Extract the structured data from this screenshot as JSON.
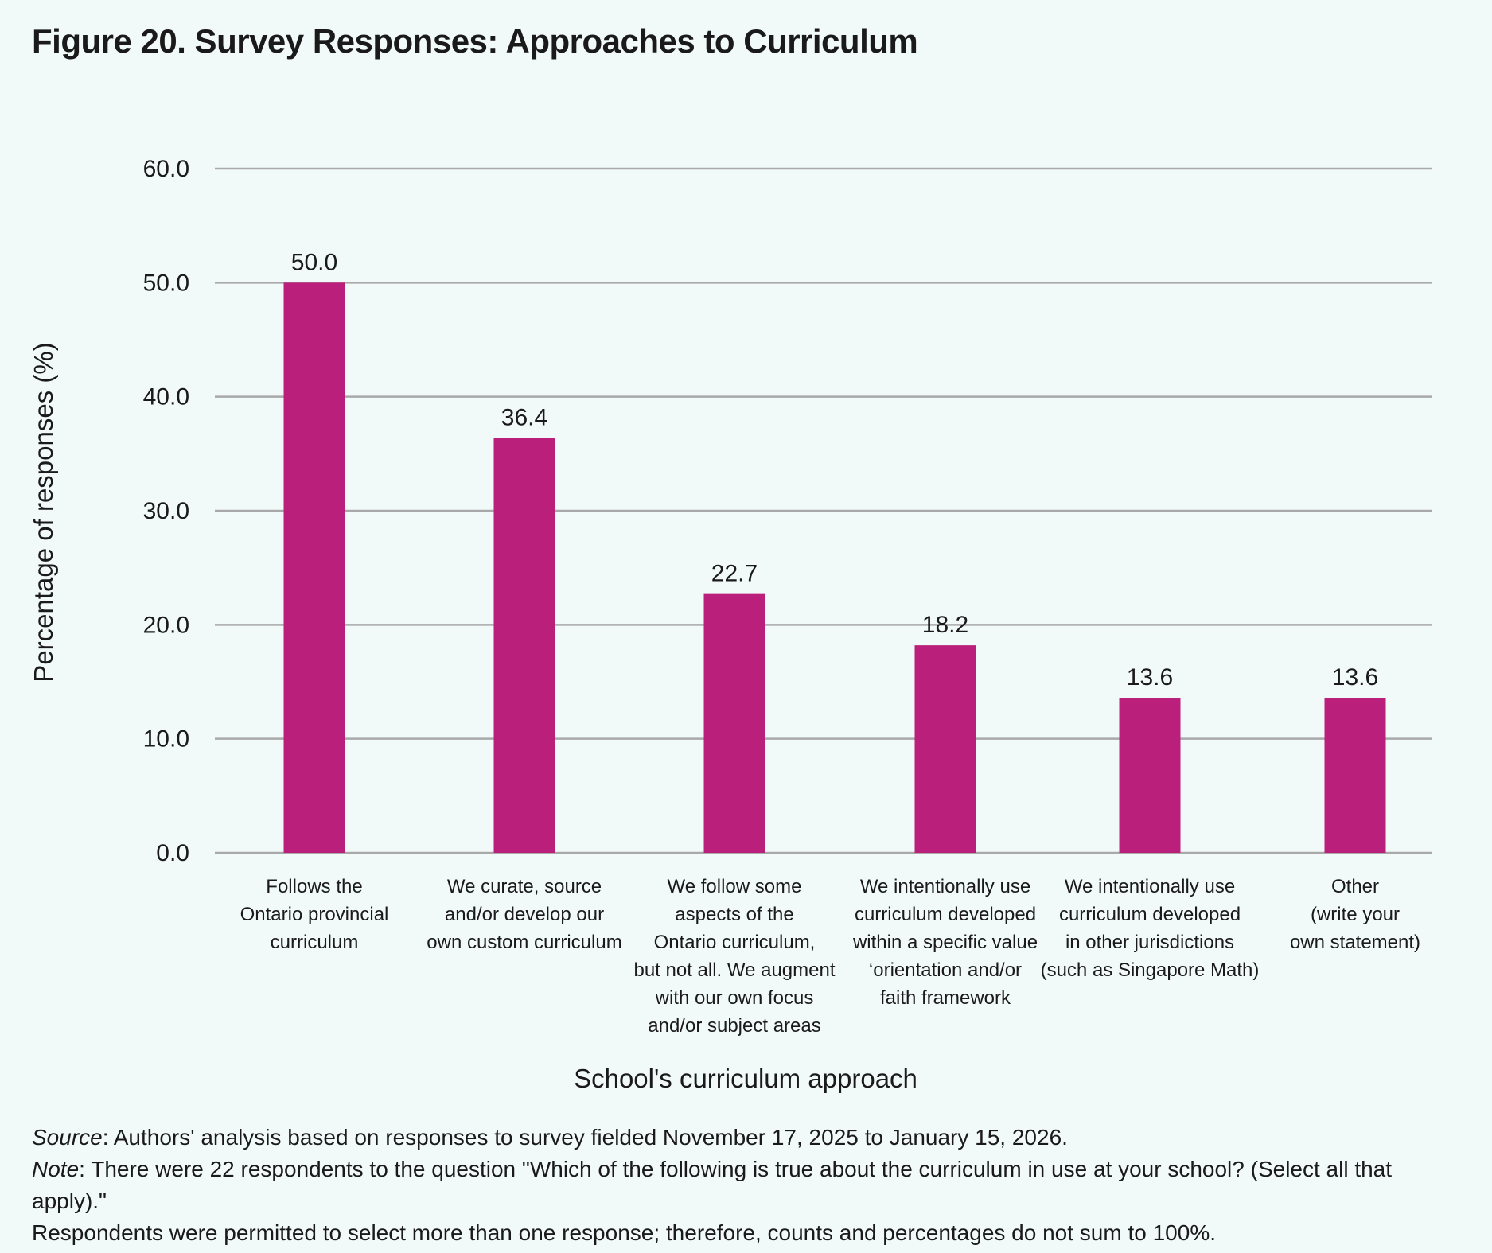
{
  "title": "Figure 20. Survey Responses: Approaches to Curriculum",
  "chart_data": {
    "type": "bar",
    "title": "Figure 20. Survey Responses: Approaches to Curriculum",
    "xlabel": "School's curriculum approach",
    "ylabel": "Percentage of responses (%)",
    "ylim": [
      0,
      60
    ],
    "yticks": [
      "0.0",
      "10.0",
      "20.0",
      "30.0",
      "40.0",
      "50.0",
      "60.0"
    ],
    "grid": true,
    "bar_color": "#bb1f7c",
    "categories": [
      [
        "Follows the",
        "Ontario provincial",
        "curriculum"
      ],
      [
        "We curate, source",
        "and/or develop our",
        "own custom curriculum"
      ],
      [
        "We follow some",
        "aspects of the",
        "Ontario curriculum,",
        "but not all. We augment",
        "with our own focus",
        "and/or subject areas"
      ],
      [
        "We intentionally use",
        "curriculum developed",
        "within a specific value",
        "‘orientation and/or",
        "faith framework"
      ],
      [
        "We intentionally use",
        "curriculum developed",
        "in other jurisdictions",
        "(such as Singapore Math)"
      ],
      [
        "Other",
        "(write your",
        "own statement)"
      ]
    ],
    "values": [
      50.0,
      36.4,
      22.7,
      18.2,
      13.6,
      13.6
    ],
    "value_labels": [
      "50.0",
      "36.4",
      "22.7",
      "18.2",
      "13.6",
      "13.6"
    ]
  },
  "footer": {
    "source_label": "Source",
    "source_text": ": Authors' analysis based on responses to survey fielded November 17, 2025 to January 15, 2026.",
    "note_label": "Note",
    "note_text": ": There were 22 respondents to the question \"Which of the following is true about the curriculum in use at your school? (Select all that apply).\"",
    "note_text2": "Respondents were permitted to select more than one response; therefore, counts and percentages do not sum to 100%."
  }
}
